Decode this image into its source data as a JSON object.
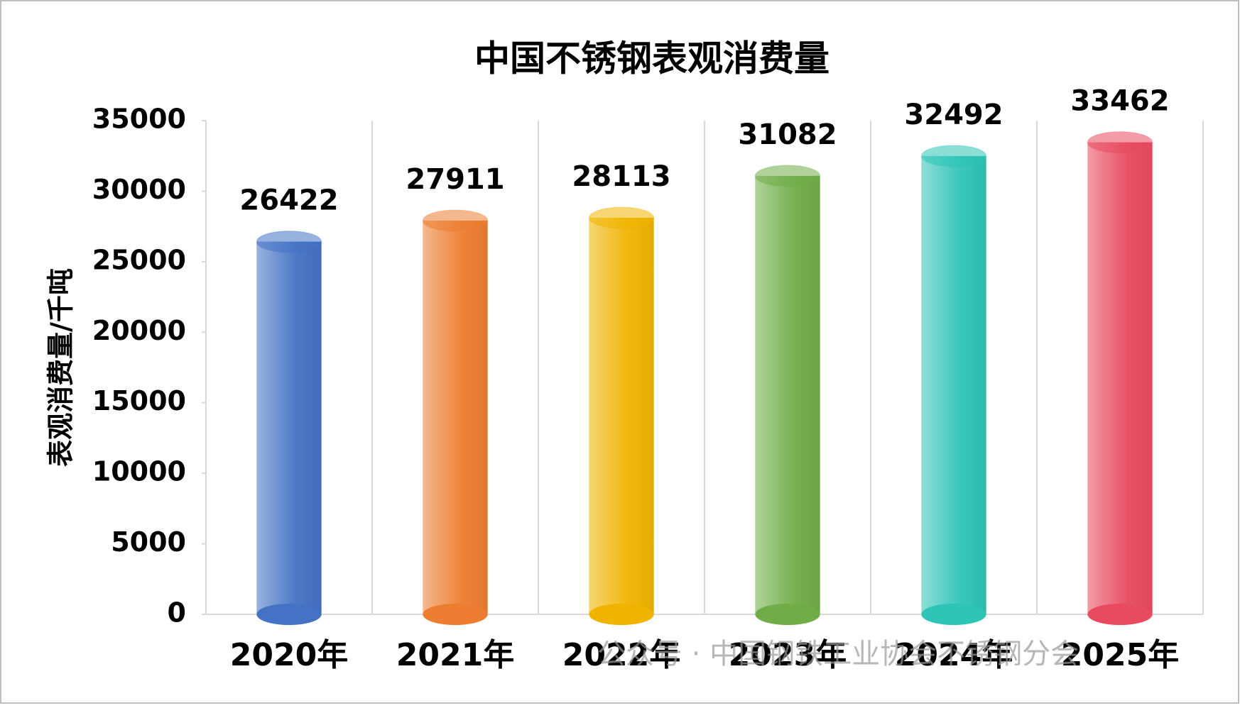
{
  "chart_data": {
    "type": "bar",
    "title": "中国不锈钢表观消费量",
    "y_label": "表观消费量/千吨",
    "categories": [
      "2020年",
      "2021年",
      "2022年",
      "2023年",
      "2024年",
      "2025年"
    ],
    "values": [
      26422,
      27911,
      28113,
      31082,
      32492,
      33462
    ],
    "colors": [
      "#4472c4",
      "#ed7d31",
      "#f0b400",
      "#70ad47",
      "#2ec4b6",
      "#e84a5f"
    ],
    "ylim": [
      0,
      35000
    ],
    "yticks": [
      0,
      5000,
      10000,
      15000,
      20000,
      25000,
      30000,
      35000
    ],
    "grid": true,
    "watermark": "公众号 · 中国钢铁工业协会不锈钢分会"
  }
}
